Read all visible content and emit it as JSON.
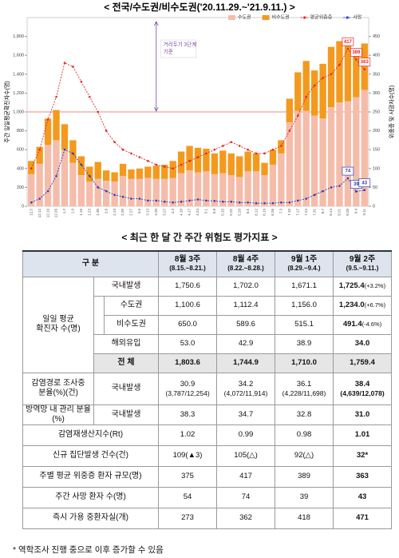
{
  "chart_data": {
    "type": "bar",
    "title": "< 전국/수도권/비수도권('20.11.29.~'21.9.11.) >",
    "y_label": "주간 일일평균확진자수(명)",
    "y2_label": "위중증 및 사망자수(명)",
    "categories": [
      "12.5",
      "12.12",
      "12.19",
      "12.26",
      "1.2",
      "1.9",
      "1.16",
      "1.23",
      "1.30",
      "2.6",
      "2.13",
      "2.20",
      "2.27",
      "3.6",
      "3.13",
      "3.20",
      "3.27",
      "4.3",
      "4.10",
      "4.17",
      "4.24",
      "5.1",
      "5.8",
      "5.15",
      "5.22",
      "5.29",
      "6.5",
      "6.12",
      "6.19",
      "6.26",
      "7.3",
      "7.10",
      "7.17",
      "7.24",
      "7.31",
      "8.7",
      "8.14",
      "8.21",
      "8.28",
      "9.4",
      "9.11"
    ],
    "series": [
      {
        "name": "수도권",
        "color": "#f5bcaa",
        "values": [
          340,
          450,
          650,
          700,
          600,
          460,
          330,
          260,
          290,
          270,
          260,
          320,
          290,
          290,
          300,
          290,
          290,
          300,
          350,
          380,
          360,
          370,
          340,
          350,
          330,
          310,
          370,
          370,
          330,
          440,
          560,
          890,
          1010,
          1010,
          960,
          930,
          1050,
          1100.6,
          1112.4,
          1156.0,
          1234.0
        ]
      },
      {
        "name": "비수도권",
        "color": "#f39a1e",
        "values": [
          140,
          180,
          280,
          320,
          270,
          240,
          200,
          160,
          180,
          110,
          100,
          130,
          100,
          110,
          120,
          140,
          150,
          180,
          230,
          260,
          260,
          240,
          220,
          240,
          230,
          220,
          210,
          190,
          130,
          160,
          140,
          250,
          410,
          530,
          480,
          580,
          640,
          650.0,
          589.6,
          515.1,
          491.4
        ]
      },
      {
        "name": "평균위중증",
        "color": "#e5262b",
        "type": "line",
        "axis": "y2",
        "values": [
          100,
          150,
          230,
          290,
          380,
          370,
          330,
          290,
          250,
          200,
          170,
          150,
          140,
          130,
          120,
          110,
          105,
          100,
          110,
          120,
          130,
          140,
          150,
          160,
          170,
          160,
          150,
          140,
          140,
          150,
          160,
          200,
          240,
          290,
          320,
          340,
          350,
          375,
          417,
          389,
          363
        ]
      },
      {
        "name": "사망",
        "color": "#2b3db8",
        "type": "line",
        "axis": "y2",
        "values": [
          10,
          20,
          40,
          80,
          150,
          140,
          110,
          80,
          50,
          40,
          30,
          25,
          20,
          20,
          15,
          15,
          12,
          10,
          12,
          15,
          18,
          15,
          14,
          12,
          12,
          10,
          10,
          8,
          8,
          8,
          10,
          10,
          15,
          20,
          30,
          40,
          50,
          54,
          74,
          39,
          43
        ]
      }
    ],
    "ylim": [
      0,
      2000
    ],
    "yticks": [
      0,
      200,
      400,
      600,
      800,
      {
        "value": 1000,
        "label": "1,000"
      },
      {
        "value": 1200,
        "label": "1,200"
      },
      {
        "value": 1400,
        "label": "1,400"
      },
      {
        "value": 1600,
        "label": "1,600"
      },
      {
        "value": 1800,
        "label": "1,800"
      }
    ],
    "y2lim": [
      0,
      500
    ],
    "y2ticks": [
      0,
      50,
      100,
      150,
      200,
      250,
      300,
      350,
      400,
      450
    ],
    "threshold": {
      "value": 1000,
      "color": "#f2a0a0",
      "label": [
        "거리두기 3단계",
        "기준"
      ]
    },
    "legend": "top-right"
  },
  "table": {
    "title": "< 최근 한 달 간 주간 위험도 평가지표 >",
    "header": {
      "label": "구 분",
      "weeks": [
        [
          "8월 3주",
          "(8.15.~8.21.)"
        ],
        [
          "8월 4주",
          "(8.22.~8.28.)"
        ],
        [
          "9월 1주",
          "(8.29.~9.4.)"
        ],
        [
          "9월 2주",
          "(9.5.~9.11.)"
        ]
      ]
    },
    "sections": [
      {
        "label": [
          "일일 평균",
          "확진자 수(명)"
        ],
        "rows": [
          {
            "item": "국내발생",
            "cells": [
              "1,750.6",
              "1,702.0",
              "1,671.1",
              "1,725.4"
            ],
            "change": "(+3.2%)",
            "sub": [
              {
                "item": "수도권",
                "cells": [
                  "1,100.6",
                  "1,112.4",
                  "1,156.0",
                  "1,234.0"
                ],
                "change": "(+6.7%)"
              },
              {
                "item": "비수도권",
                "cells": [
                  "650.0",
                  "589.6",
                  "515.1",
                  "491.4"
                ],
                "change": "(-4.6%)"
              }
            ]
          },
          {
            "item": "해외유입",
            "cells": [
              "53.0",
              "42.9",
              "38.9",
              "34.0"
            ]
          },
          {
            "item": "전 체",
            "cells": [
              "1,803.6",
              "1,744.9",
              "1,710.0",
              "1,759.4"
            ]
          }
        ]
      },
      {
        "label": [
          "감염경로 조사중",
          "분율(%)(건)"
        ],
        "rows": [
          {
            "item": "국내발생",
            "cells": [
              "30.9",
              "34.2",
              "36.1",
              "38.4"
            ],
            "counts": [
              "(3,787/12,254)",
              "(4,072/11,914)",
              "(4,228/11,698)",
              "(4,639/12,078)"
            ]
          }
        ]
      },
      {
        "label": [
          "방역망 내 관리 분율(%)"
        ],
        "rows": [
          {
            "item": "국내발생",
            "cells": [
              "38.3",
              "34.7",
              "32.8",
              "31.0"
            ]
          }
        ]
      },
      {
        "label": [
          "감염재생산지수(Rt)"
        ],
        "rows": [
          {
            "cells": [
              "1.02",
              "0.99",
              "0.98",
              "1.01"
            ]
          }
        ]
      },
      {
        "label": [
          "신규 집단발생 건수(건)"
        ],
        "rows": [
          {
            "cells": [
              "109(▲3)",
              "105(△)",
              "92(△)",
              "32*"
            ]
          }
        ]
      },
      {
        "label": [
          "주별 평균 위중증 환자 규모(명)"
        ],
        "rows": [
          {
            "cells": [
              "375",
              "417",
              "389",
              "363"
            ]
          }
        ]
      },
      {
        "label": [
          "주간 사망 환자 수(명)"
        ],
        "rows": [
          {
            "cells": [
              "54",
              "74",
              "39",
              "43"
            ]
          }
        ]
      },
      {
        "label": [
          "즉시 가용 중환자실(개)"
        ],
        "rows": [
          {
            "cells": [
              "273",
              "362",
              "418",
              "471"
            ]
          }
        ]
      }
    ],
    "footnote": "* 역학조사 진행 중으로 이후 증가할 수 있음"
  }
}
